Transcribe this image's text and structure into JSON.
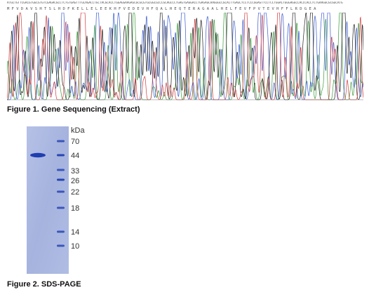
{
  "figure1": {
    "caption": "Figure 1. Gene Sequencing (Extract)",
    "nucleotide_sequence": "ATGCTGTTCGACGTGGCGTGTCGAGACGCCTCTGTGAGTTTGCAGACCTGCTACGCACCTGGAGGAAGAGCGCGCGTGCGGCGCCCGCAGCCCTGAGTGAGGACCTGAGAGCAAGGGCCGCACTTGAGCTCCTCCCGGAGTTCCTCCTGGACTGGGAGGCCACCCACCTCTGAAGGCGCGGCATG",
    "amino_acid_sequence": "M  F  V  D  A  V  S  H  T  S  L  H  D  F  K  E  L  L  E  L  E  E  K  H  F  V  E  D  E  V  H  F  Q  A  L  H  E  Q  T  E  R  A  G  A  A  L  H  E  L  F  E  V  F  P  V  T  E  V  H  F  F  L  R  D  G  E  A",
    "trace_colors": {
      "A": "#3a9a3a",
      "C": "#3a5bd0",
      "G": "#222222",
      "T": "#d23a3a"
    }
  },
  "figure2": {
    "caption": "Figure 2. SDS-PAGE",
    "unit_label": "kDa",
    "ladder_markers": [
      "70",
      "44",
      "33",
      "26",
      "22",
      "18",
      "14",
      "10"
    ],
    "sample_band_kda": 44,
    "gel_color": "#a7b4df",
    "band_color": "#1f3fb0"
  }
}
